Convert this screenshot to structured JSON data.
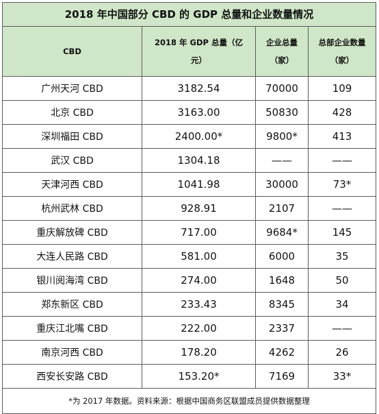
{
  "title": "2018 年中国部分 CBD 的 GDP 总量和企业数量情况",
  "headers": {
    "name": "CBD",
    "gdp_line1": "2018 年 GDP 总量（亿",
    "gdp_line2": "元）",
    "firms_line1": "企业总量",
    "firms_line2": "（家）",
    "hq_line1": "总部企业数量",
    "hq_line2": "（家）"
  },
  "rows": [
    {
      "name": "广州天河 CBD",
      "gdp": "3182.54",
      "firms": "70000",
      "hq": "109"
    },
    {
      "name": "北京 CBD",
      "gdp": "3163.00",
      "firms": "50830",
      "hq": "428"
    },
    {
      "name": "深圳福田 CBD",
      "gdp": "2400.00*",
      "firms": "9800*",
      "hq": "413"
    },
    {
      "name": "武汉 CBD",
      "gdp": "1304.18",
      "firms": "——",
      "hq": "——"
    },
    {
      "name": "天津河西 CBD",
      "gdp": "1041.98",
      "firms": "30000",
      "hq": "73*"
    },
    {
      "name": "杭州武林 CBD",
      "gdp": "928.91",
      "firms": "2107",
      "hq": "——"
    },
    {
      "name": "重庆解放碑 CBD",
      "gdp": "717.00",
      "firms": "9684*",
      "hq": "145"
    },
    {
      "name": "大连人民路 CBD",
      "gdp": "581.00",
      "firms": "6000",
      "hq": "35"
    },
    {
      "name": "银川阅海湾 CBD",
      "gdp": "274.00",
      "firms": "1648",
      "hq": "50"
    },
    {
      "name": "郑东新区 CBD",
      "gdp": "233.43",
      "firms": "8345",
      "hq": "34"
    },
    {
      "name": "重庆江北嘴 CBD",
      "gdp": "222.00",
      "firms": "2337",
      "hq": "——"
    },
    {
      "name": "南京河西 CBD",
      "gdp": "178.20",
      "firms": "4262",
      "hq": "26"
    },
    {
      "name": "西安长安路 CBD",
      "gdp": "153.20*",
      "firms": "7169",
      "hq": "33*"
    }
  ],
  "footnote": "*为 2017 年数据。资料来源：根据中国商务区联盟成员提供数据整理"
}
